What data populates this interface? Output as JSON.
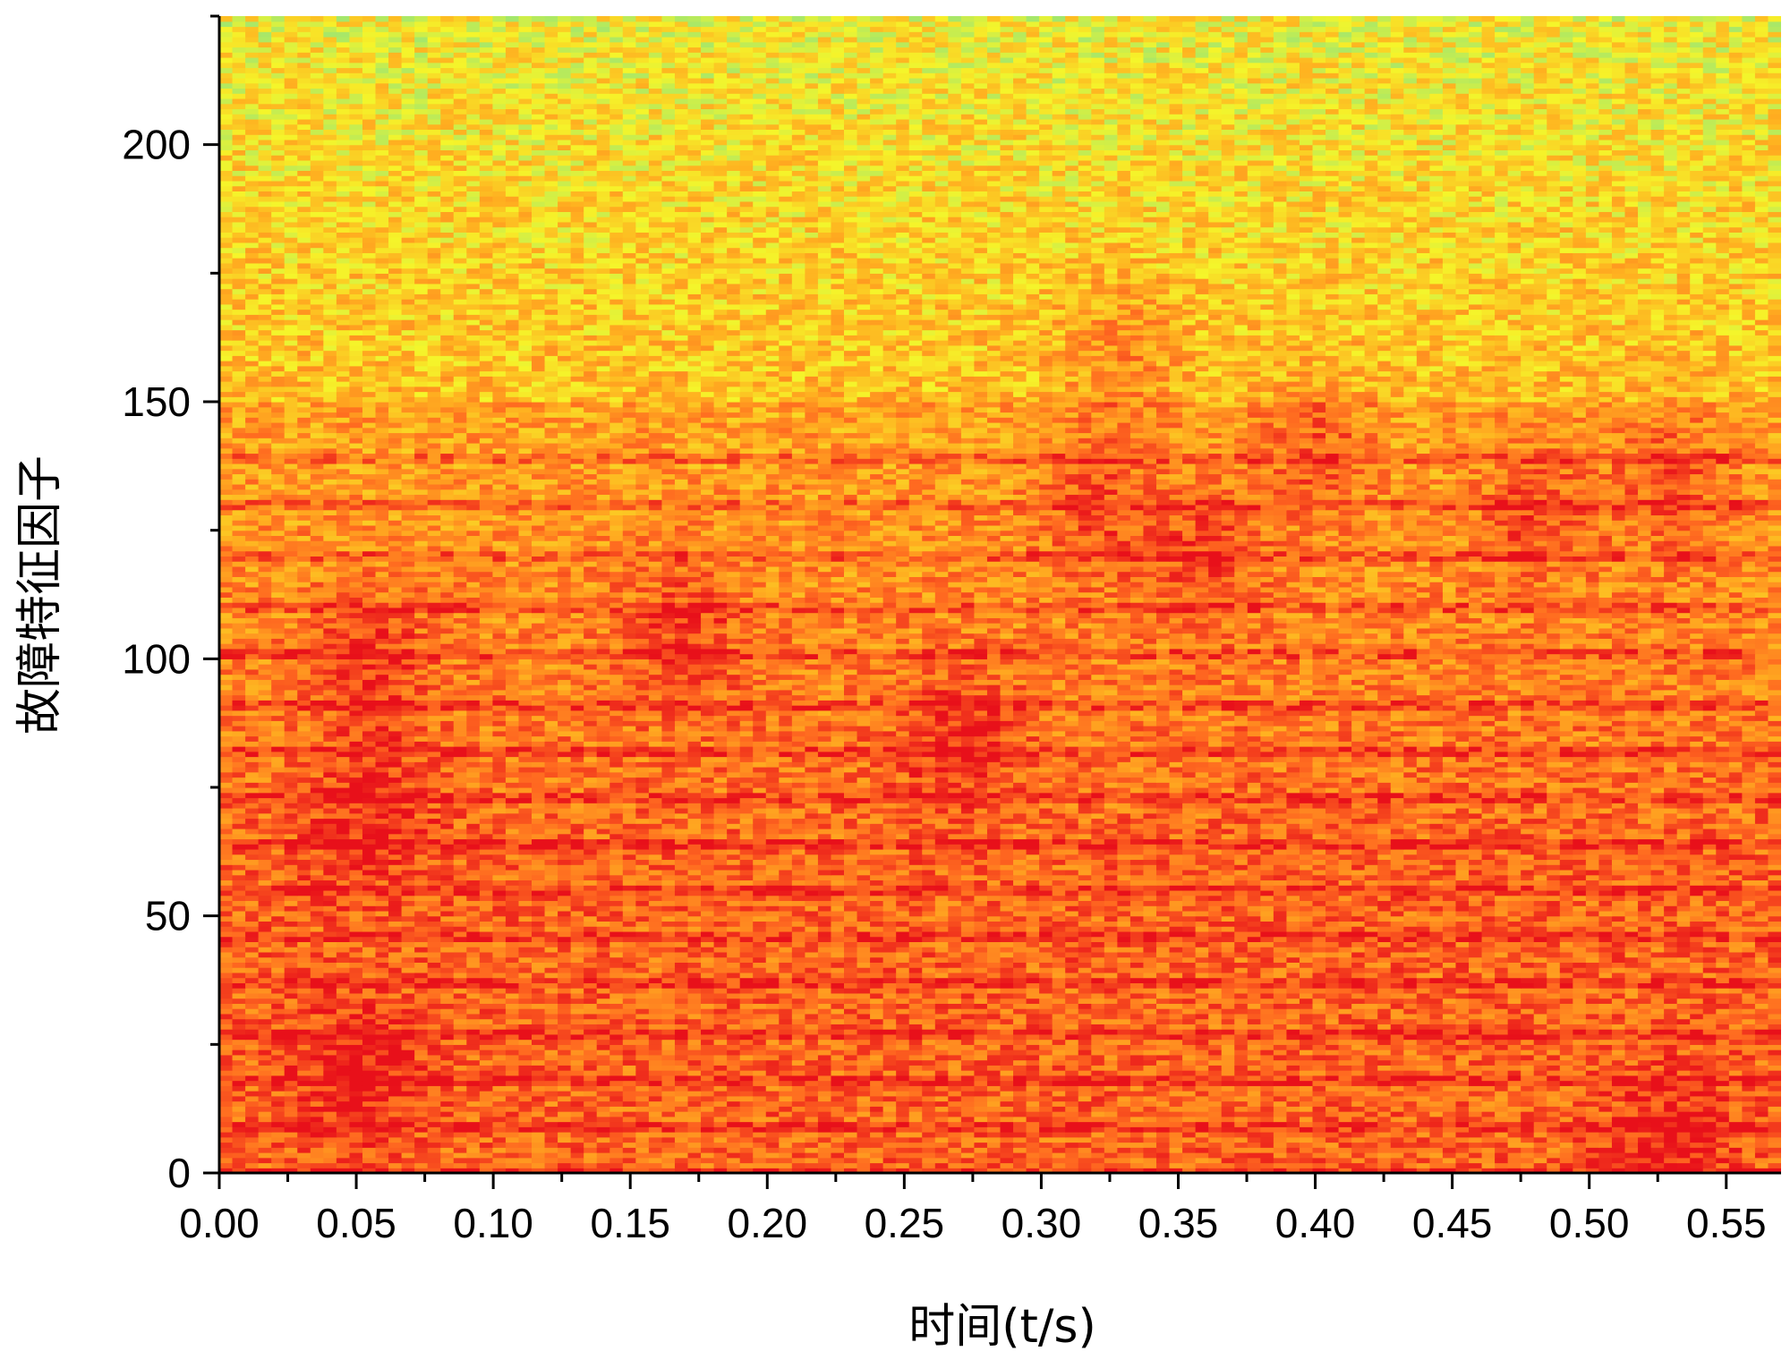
{
  "chart_data": {
    "type": "heatmap",
    "xlabel": "时间(t/s)",
    "ylabel": "故障特征因子",
    "xlim": [
      0.0,
      0.57
    ],
    "ylim": [
      0,
      225
    ],
    "x_ticks": [
      "0.00",
      "0.05",
      "0.10",
      "0.15",
      "0.20",
      "0.25",
      "0.30",
      "0.35",
      "0.40",
      "0.45",
      "0.50",
      "0.55"
    ],
    "y_ticks": [
      "0",
      "50",
      "100",
      "150",
      "200"
    ],
    "colormap": [
      "#1fb8c8",
      "#7ee08a",
      "#f5f52a",
      "#ffb020",
      "#ff6a20",
      "#e8101a"
    ],
    "hot_bands": [
      0,
      9,
      18,
      27,
      37,
      46,
      55,
      64,
      73,
      82,
      91,
      101,
      110,
      120,
      130,
      139
    ],
    "hot_spots": [
      {
        "x": 0.055,
        "y": 70
      },
      {
        "x": 0.055,
        "y": 100
      },
      {
        "x": 0.05,
        "y": 20
      },
      {
        "x": 0.17,
        "y": 105
      },
      {
        "x": 0.27,
        "y": 85
      },
      {
        "x": 0.33,
        "y": 160
      },
      {
        "x": 0.32,
        "y": 130
      },
      {
        "x": 0.36,
        "y": 120
      },
      {
        "x": 0.4,
        "y": 142
      },
      {
        "x": 0.48,
        "y": 130
      },
      {
        "x": 0.53,
        "y": 5
      },
      {
        "x": 0.53,
        "y": 135
      }
    ],
    "grid": false,
    "legend": "none"
  }
}
